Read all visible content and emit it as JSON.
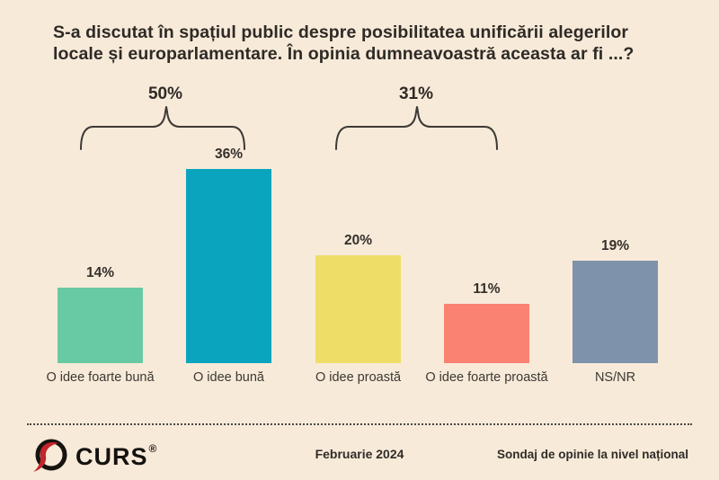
{
  "title": "S-a discutat în spațiul public despre posibilitatea unificării alegerilor locale și europarlamentare. În opinia dumneavoastră aceasta ar fi ...?",
  "chart_data": {
    "type": "bar",
    "categories": [
      "O idee foarte bună",
      "O idee bună",
      "O idee proastă",
      "O idee foarte proastă",
      "NS/NR"
    ],
    "values": [
      14,
      36,
      20,
      11,
      19
    ],
    "value_labels": [
      "14%",
      "36%",
      "20%",
      "11%",
      "19%"
    ],
    "bar_colors": [
      "#68c9a5",
      "#0ba4bf",
      "#eedd66",
      "#fa8272",
      "#7e93ab"
    ],
    "groups": [
      {
        "label": "50%",
        "spans": [
          "O idee foarte bună",
          "O idee bună"
        ]
      },
      {
        "label": "31%",
        "spans": [
          "O idee proastă",
          "O idee foarte proastă"
        ]
      }
    ],
    "ylim": [
      0,
      40
    ],
    "grid": false,
    "legend": false,
    "title": "S-a discutat în spațiul public despre posibilitatea unificării alegerilor locale și europarlamentare. În opinia dumneavoastră aceasta ar fi ...?",
    "xlabel": "",
    "ylabel": ""
  },
  "footer": {
    "logo_text": "CURS",
    "registered_mark": "®",
    "date": "Februarie 2024",
    "note": "Sondaj de opinie la nivel național"
  },
  "colors": {
    "background": "#f8ead9",
    "text": "#2e2a26",
    "bracket": "#3d3a36",
    "logo_red": "#c4242b",
    "logo_black": "#161310"
  }
}
